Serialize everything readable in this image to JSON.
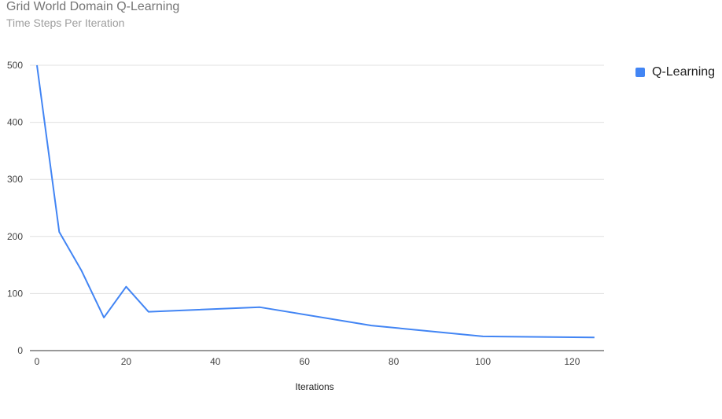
{
  "chart_data": {
    "type": "line",
    "title": "Grid World Domain Q-Learning",
    "subtitle": "Time Steps Per Iteration",
    "xlabel": "Iterations",
    "ylabel": "",
    "xlim": [
      -2,
      127
    ],
    "ylim": [
      0,
      500
    ],
    "x_ticks": [
      0,
      20,
      40,
      60,
      80,
      100,
      120
    ],
    "y_ticks": [
      0,
      100,
      200,
      300,
      400,
      500
    ],
    "grid": true,
    "legend_position": "right",
    "series": [
      {
        "name": "Q-Learning",
        "color": "#4285f4",
        "x": [
          0,
          5,
          10,
          15,
          20,
          25,
          50,
          75,
          100,
          125
        ],
        "y": [
          500,
          208,
          140,
          58,
          112,
          68,
          76,
          44,
          25,
          23
        ]
      }
    ]
  }
}
